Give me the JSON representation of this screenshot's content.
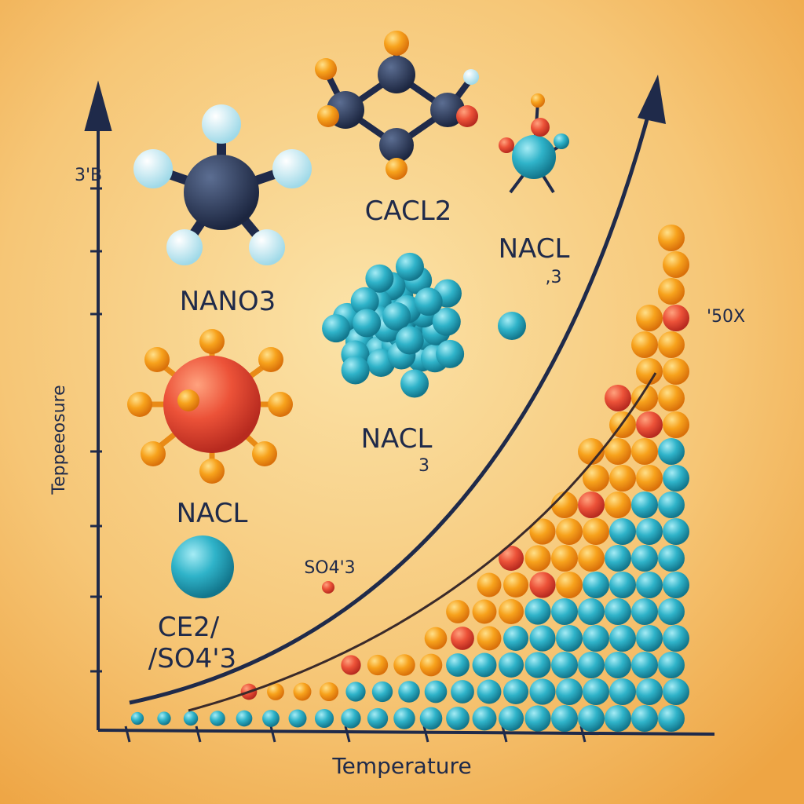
{
  "axis": {
    "x_label": "Temperature",
    "y_label": "Teppeeosure",
    "y_top_label": "3'B",
    "right_label": "'50X"
  },
  "labels": [
    "CACL2",
    "NACL",
    ",3",
    "NANO3",
    "NACL",
    "3",
    "NACL",
    "SO4'3",
    "CE2/",
    "/SO4'3"
  ]
}
